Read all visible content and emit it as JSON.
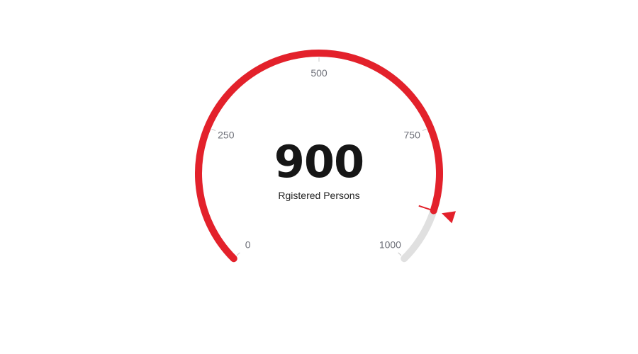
{
  "chart_data": {
    "type": "gauge",
    "min": 0,
    "max": 1000,
    "value": 900,
    "value_label": "900",
    "caption": "Rgistered Persons",
    "ticks": [
      {
        "value": 0,
        "label": "0"
      },
      {
        "value": 250,
        "label": "250"
      },
      {
        "value": 500,
        "label": "500"
      },
      {
        "value": 750,
        "label": "750"
      },
      {
        "value": 1000,
        "label": "1000"
      }
    ],
    "colors": {
      "progress": "#e3212b",
      "track": "#e0e0e0",
      "pointer": "#e3212b",
      "tick_label": "#6e7079",
      "value_text": "#161616"
    }
  }
}
